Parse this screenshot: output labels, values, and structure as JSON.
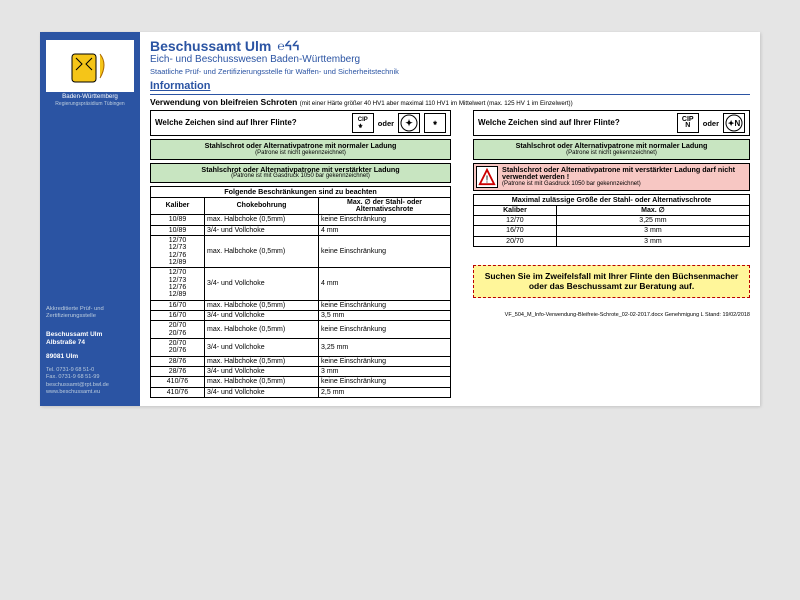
{
  "sidebar": {
    "state": "Baden-Württemberg",
    "sub": "Regierungspräsidium Tübingen",
    "accred": "Akkreditierte Prüf- und Zertifizierungsstelle",
    "addr1": "Beschussamt Ulm",
    "addr2": "Albstraße 74",
    "addr3": "89081 Ulm",
    "tel": "Tel. 0731-9 68 51-0",
    "fax": "Fax. 0731-9 68 51-99",
    "mail": "beschussamt@rpt.bwl.de",
    "web": "www.beschussamt.eu"
  },
  "header": {
    "h1": "Beschussamt Ulm",
    "h2": "Eich- und Beschusswesen Baden-Württemberg",
    "h3": "Staatliche Prüf- und Zertifizierungsstelle für Waffen- und Sicherheitstechnik",
    "h4": "Information",
    "use_bold": "Verwendung von bleifreien Schroten",
    "use_tiny": "(mit einer Härte größer 40 HV1 aber maximal 110 HV1 im Mittelwert (max. 125 HV 1 im Einzelwert))"
  },
  "q_left": "Welche Zeichen sind auf Ihrer Flinte?",
  "q_right": "Welche Zeichen sind auf Ihrer Flinte?",
  "oder": "oder",
  "green1": {
    "line1": "Stahlschrot oder Alternativpatrone mit normaler Ladung",
    "line2": "(Patrone ist nicht gekennzeichnet)"
  },
  "green2": {
    "line1": "Stahlschrot oder Alternativpatrone mit verstärkter Ladung",
    "line2": "(Patrone ist mit Gasdruck 1050 bar gekennzeichnet)"
  },
  "red": {
    "line1": "Stahlschrot oder Alternativpatrone mit verstärkter Ladung darf nicht verwendet werden !",
    "line2": "(Patrone ist mit Gasdruck 1050 bar gekennzeichnet)"
  },
  "tableL": {
    "caption": "Folgende Beschränkungen sind zu beachten",
    "cols": [
      "Kaliber",
      "Chokebohrung",
      "Max. ∅ der Stahl- oder Alternativschrote"
    ],
    "rows": [
      [
        "10/89",
        "max. Halbchoke (0,5mm)",
        "keine Einschränkung"
      ],
      [
        "10/89",
        "3/4- und Vollchoke",
        "4 mm"
      ],
      [
        "12/70\n12/73\n12/76\n12/89",
        "max. Halbchoke (0,5mm)",
        "keine Einschränkung"
      ],
      [
        "12/70\n12/73\n12/76\n12/89",
        "3/4- und Vollchoke",
        "4 mm"
      ],
      [
        "16/70",
        "max. Halbchoke (0,5mm)",
        "keine Einschränkung"
      ],
      [
        "16/70",
        "3/4- und Vollchoke",
        "3,5 mm"
      ],
      [
        "20/70\n20/76",
        "max. Halbchoke (0,5mm)",
        "keine Einschränkung"
      ],
      [
        "20/70\n20/76",
        "3/4- und Vollchoke",
        "3,25 mm"
      ],
      [
        "28/76",
        "max. Halbchoke (0,5mm)",
        "keine Einschränkung"
      ],
      [
        "28/76",
        "3/4- und Vollchoke",
        "3 mm"
      ],
      [
        "410/76",
        "max. Halbchoke (0,5mm)",
        "keine Einschränkung"
      ],
      [
        "410/76",
        "3/4- und Vollchoke",
        "2,5 mm"
      ]
    ]
  },
  "tableR": {
    "caption": "Maximal zulässige Größe der Stahl- oder Alternativschrote",
    "cols": [
      "Kaliber",
      "Max. ∅"
    ],
    "rows": [
      [
        "12/70",
        "3,25 mm"
      ],
      [
        "16/70",
        "3 mm"
      ],
      [
        "20/70",
        "3 mm"
      ]
    ]
  },
  "yellow": "Suchen Sie im Zweifelsfall mit Ihrer Flinte den Büchsenmacher oder das Beschussamt zur Beratung auf.",
  "footer": "VF_504_M_Info-Verwendung-Bleifreie-Schrote_02-02-2017.docx   Genehmigung L   Stand: 19/02/2018"
}
